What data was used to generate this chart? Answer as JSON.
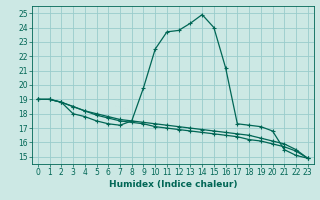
{
  "xlabel": "Humidex (Indice chaleur)",
  "bg_color": "#cce8e4",
  "grid_color": "#99cccc",
  "line_color": "#006655",
  "xlim": [
    -0.5,
    23.5
  ],
  "ylim": [
    14.5,
    25.5
  ],
  "xticks": [
    0,
    1,
    2,
    3,
    4,
    5,
    6,
    7,
    8,
    9,
    10,
    11,
    12,
    13,
    14,
    15,
    16,
    17,
    18,
    19,
    20,
    21,
    22,
    23
  ],
  "yticks": [
    15,
    16,
    17,
    18,
    19,
    20,
    21,
    22,
    23,
    24,
    25
  ],
  "series1_x": [
    0,
    1,
    2,
    3,
    4,
    5,
    6,
    7,
    8,
    9,
    10,
    11,
    12,
    13,
    14,
    15,
    16,
    17,
    18,
    19,
    20,
    21,
    22,
    23
  ],
  "series1_y": [
    19.0,
    19.0,
    18.8,
    18.0,
    17.8,
    17.5,
    17.3,
    17.2,
    17.5,
    19.8,
    22.5,
    23.7,
    23.8,
    24.3,
    24.9,
    24.0,
    21.2,
    17.3,
    17.2,
    17.1,
    16.8,
    15.5,
    15.1,
    14.9
  ],
  "series2_x": [
    0,
    1,
    2,
    3,
    4,
    5,
    6,
    7,
    8,
    9,
    10,
    11,
    12,
    13,
    14,
    15,
    16,
    17,
    18,
    19,
    20,
    21,
    22,
    23
  ],
  "series2_y": [
    19.0,
    19.0,
    18.8,
    18.5,
    18.2,
    18.0,
    17.8,
    17.6,
    17.5,
    17.4,
    17.3,
    17.2,
    17.1,
    17.0,
    16.9,
    16.8,
    16.7,
    16.6,
    16.5,
    16.3,
    16.1,
    15.9,
    15.5,
    14.9
  ],
  "series3_x": [
    0,
    1,
    2,
    3,
    4,
    5,
    6,
    7,
    8,
    9,
    10,
    11,
    12,
    13,
    14,
    15,
    16,
    17,
    18,
    19,
    20,
    21,
    22,
    23
  ],
  "series3_y": [
    19.0,
    19.0,
    18.8,
    18.5,
    18.2,
    17.9,
    17.7,
    17.5,
    17.4,
    17.3,
    17.1,
    17.0,
    16.9,
    16.8,
    16.7,
    16.6,
    16.5,
    16.4,
    16.2,
    16.1,
    15.9,
    15.7,
    15.4,
    14.9
  ]
}
